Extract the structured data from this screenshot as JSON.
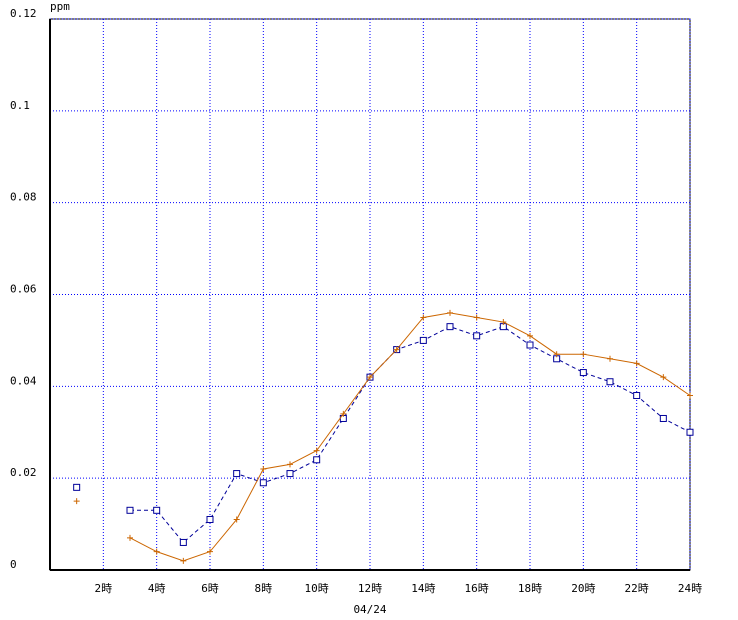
{
  "chart_data": {
    "type": "line",
    "ylabel": "ppm",
    "xlabel": "04/24",
    "x": [
      1,
      2,
      3,
      4,
      5,
      6,
      7,
      8,
      9,
      10,
      11,
      12,
      13,
      14,
      15,
      16,
      17,
      18,
      19,
      20,
      21,
      22,
      23,
      24
    ],
    "series": [
      {
        "color": "#000099",
        "marker": "square",
        "dashed": true,
        "values": [
          0.018,
          null,
          0.013,
          0.013,
          0.006,
          0.011,
          0.021,
          0.019,
          0.021,
          0.024,
          0.033,
          0.042,
          0.048,
          0.05,
          0.053,
          0.051,
          0.053,
          0.049,
          0.046,
          0.043,
          0.041,
          0.038,
          0.033,
          0.03
        ]
      },
      {
        "color": "#cc6600",
        "marker": "plus",
        "dashed": false,
        "values": [
          0.015,
          null,
          0.007,
          0.004,
          0.002,
          0.004,
          0.011,
          0.022,
          0.023,
          0.026,
          0.034,
          0.042,
          0.048,
          0.055,
          0.056,
          0.055,
          0.054,
          0.051,
          0.047,
          0.047,
          0.046,
          0.045,
          0.042,
          0.038
        ]
      }
    ],
    "xlim": [
      0,
      24
    ],
    "xticks": [
      {
        "value": 2,
        "label": "2時"
      },
      {
        "value": 4,
        "label": "4時"
      },
      {
        "value": 6,
        "label": "6時"
      },
      {
        "value": 8,
        "label": "8時"
      },
      {
        "value": 10,
        "label": "10時"
      },
      {
        "value": 12,
        "label": "12時"
      },
      {
        "value": 14,
        "label": "14時"
      },
      {
        "value": 16,
        "label": "16時"
      },
      {
        "value": 18,
        "label": "18時"
      },
      {
        "value": 20,
        "label": "20時"
      },
      {
        "value": 22,
        "label": "22時"
      },
      {
        "value": 24,
        "label": "24時"
      }
    ],
    "ylim": [
      0,
      0.12
    ],
    "yticks": [
      0,
      0.02,
      0.04,
      0.06,
      0.08,
      0.1,
      0.12
    ],
    "grid": true,
    "grid_color": "#0000ff"
  }
}
